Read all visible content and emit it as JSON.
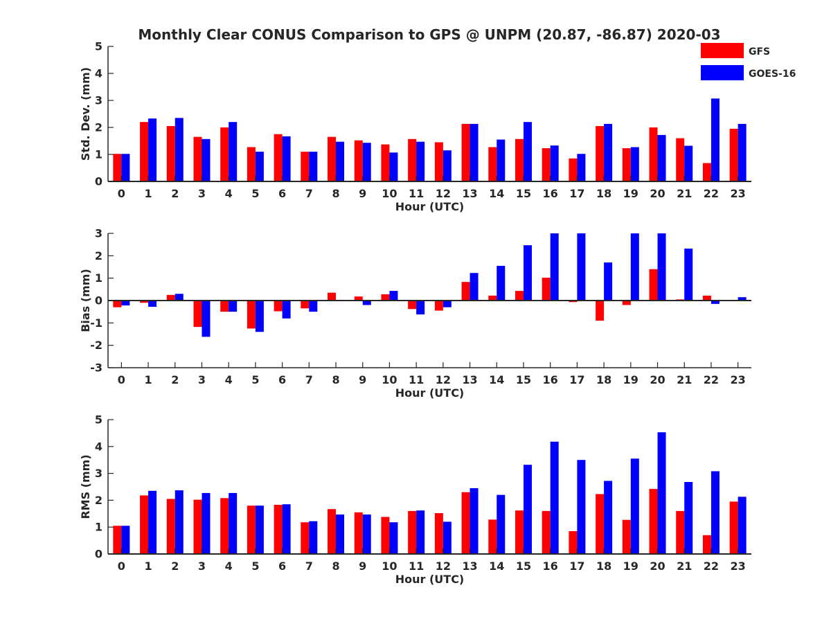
{
  "figure": {
    "title": "Monthly Clear CONUS Comparison to GPS @ UNPM (20.87, -86.87) 2020-03"
  },
  "legend": [
    {
      "label": "GFS",
      "color": "#ff0000"
    },
    {
      "label": "GOES-16",
      "color": "#0000ff"
    }
  ],
  "chart_data": [
    {
      "type": "bar",
      "xlabel": "Hour (UTC)",
      "ylabel": "Std. Dev. (mm)",
      "ylim": [
        0,
        5
      ],
      "yticks": [
        0,
        1,
        2,
        3,
        4,
        5
      ],
      "categories": [
        "0",
        "1",
        "2",
        "3",
        "4",
        "5",
        "6",
        "7",
        "8",
        "9",
        "10",
        "11",
        "12",
        "13",
        "14",
        "15",
        "16",
        "17",
        "18",
        "19",
        "20",
        "21",
        "22",
        "23"
      ],
      "series": [
        {
          "name": "GFS",
          "color": "#ff0000",
          "values": [
            1.02,
            2.2,
            2.05,
            1.65,
            2.0,
            1.27,
            1.75,
            1.1,
            1.65,
            1.52,
            1.37,
            1.57,
            1.45,
            2.13,
            1.27,
            1.57,
            1.23,
            0.85,
            2.05,
            1.23,
            2.0,
            1.6,
            0.68,
            1.95
          ]
        },
        {
          "name": "GOES-16",
          "color": "#0000ff",
          "values": [
            1.02,
            2.33,
            2.35,
            1.57,
            2.2,
            1.1,
            1.67,
            1.1,
            1.47,
            1.43,
            1.07,
            1.47,
            1.15,
            2.13,
            1.55,
            2.2,
            1.33,
            1.02,
            2.13,
            1.27,
            1.72,
            1.32,
            3.07,
            2.13
          ]
        }
      ]
    },
    {
      "type": "bar",
      "xlabel": "Hour (UTC)",
      "ylabel": "Bias (mm)",
      "ylim": [
        -3,
        3
      ],
      "yticks": [
        -3,
        -2,
        -1,
        0,
        1,
        2,
        3
      ],
      "baseline": 0,
      "categories": [
        "0",
        "1",
        "2",
        "3",
        "4",
        "5",
        "6",
        "7",
        "8",
        "9",
        "10",
        "11",
        "12",
        "13",
        "14",
        "15",
        "16",
        "17",
        "18",
        "19",
        "20",
        "21",
        "22",
        "23"
      ],
      "series": [
        {
          "name": "GFS",
          "color": "#ff0000",
          "values": [
            -0.3,
            -0.1,
            0.25,
            -1.18,
            -0.5,
            -1.25,
            -0.48,
            -0.35,
            0.35,
            0.18,
            0.28,
            -0.38,
            -0.45,
            0.83,
            0.22,
            0.43,
            1.02,
            -0.07,
            -0.9,
            -0.2,
            1.4,
            0.05,
            0.22,
            0.0
          ]
        },
        {
          "name": "GOES-16",
          "color": "#0000ff",
          "values": [
            -0.22,
            -0.28,
            0.3,
            -1.62,
            -0.5,
            -1.4,
            -0.8,
            -0.5,
            0.0,
            -0.2,
            0.43,
            -0.62,
            -0.3,
            1.23,
            1.55,
            2.47,
            3.0,
            3.0,
            1.7,
            3.0,
            3.0,
            2.32,
            -0.15,
            0.15
          ]
        }
      ]
    },
    {
      "type": "bar",
      "xlabel": "Hour (UTC)",
      "ylabel": "RMS (mm)",
      "ylim": [
        0,
        5
      ],
      "yticks": [
        0,
        1,
        2,
        3,
        4,
        5
      ],
      "categories": [
        "0",
        "1",
        "2",
        "3",
        "4",
        "5",
        "6",
        "7",
        "8",
        "9",
        "10",
        "11",
        "12",
        "13",
        "14",
        "15",
        "16",
        "17",
        "18",
        "19",
        "20",
        "21",
        "22",
        "23"
      ],
      "series": [
        {
          "name": "GFS",
          "color": "#ff0000",
          "values": [
            1.05,
            2.18,
            2.05,
            2.02,
            2.08,
            1.8,
            1.83,
            1.18,
            1.67,
            1.55,
            1.38,
            1.6,
            1.52,
            2.3,
            1.28,
            1.62,
            1.6,
            0.85,
            2.23,
            1.27,
            2.42,
            1.6,
            0.7,
            1.95
          ]
        },
        {
          "name": "GOES-16",
          "color": "#0000ff",
          "values": [
            1.05,
            2.35,
            2.37,
            2.27,
            2.27,
            1.8,
            1.85,
            1.22,
            1.47,
            1.47,
            1.18,
            1.62,
            1.2,
            2.45,
            2.2,
            3.32,
            4.18,
            3.5,
            2.72,
            3.55,
            4.53,
            2.68,
            3.08,
            2.13
          ]
        }
      ]
    }
  ]
}
